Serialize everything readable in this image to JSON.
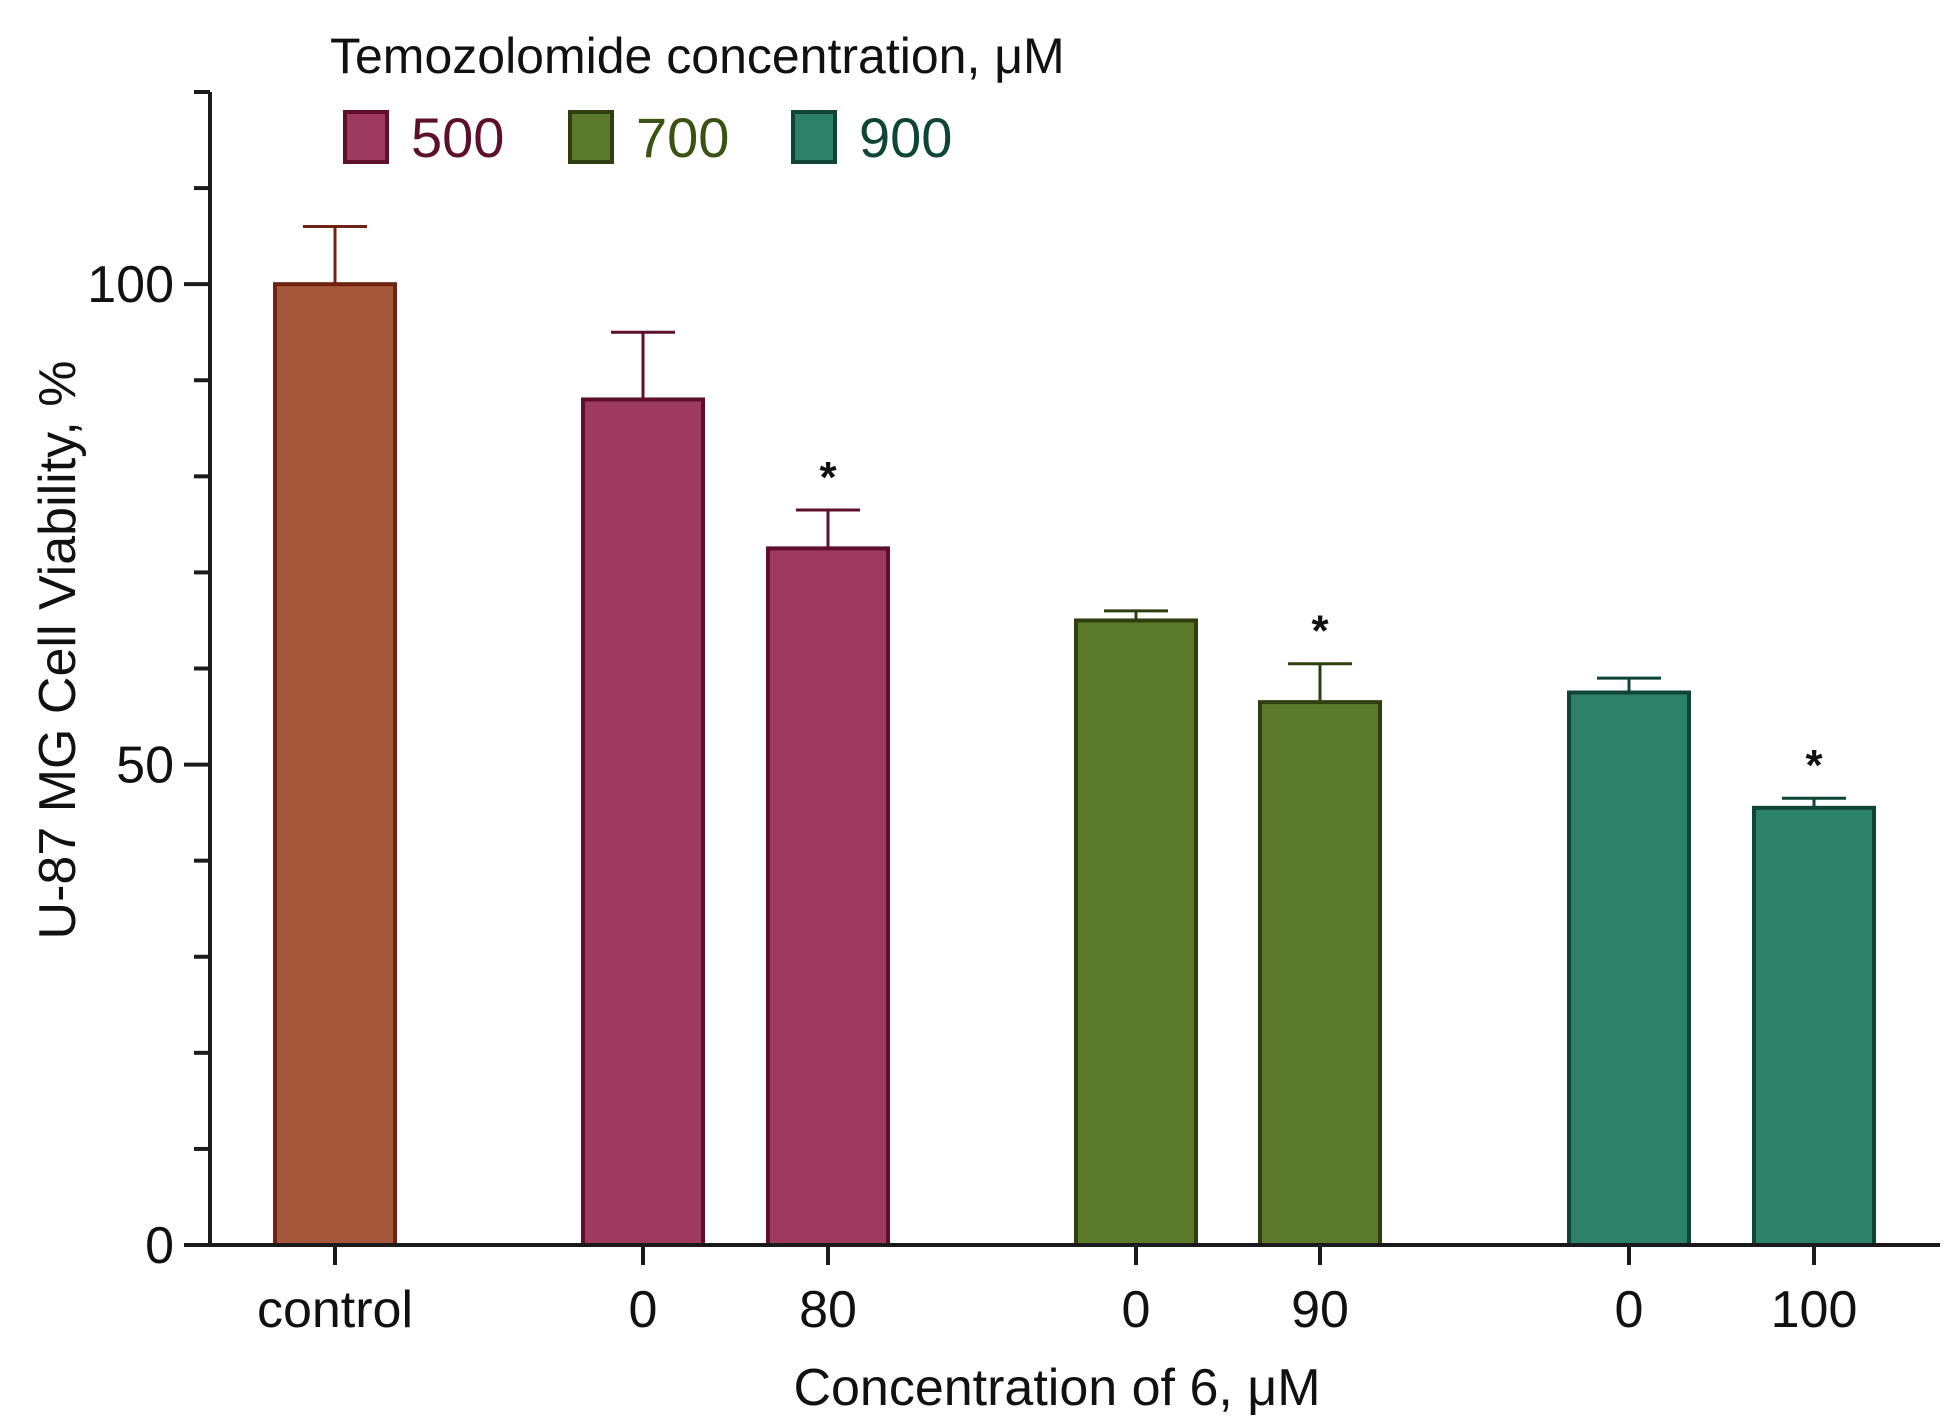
{
  "chart_data": {
    "type": "bar",
    "title": "",
    "xlabel": "Concentration of 6, μM",
    "ylabel": "U-87 MG Cell Viability, %",
    "ylim": [
      0,
      120
    ],
    "yticks_major": [
      0,
      50,
      100
    ],
    "yticks_minor": [
      10,
      20,
      30,
      40,
      60,
      70,
      80,
      90,
      110,
      120
    ],
    "grid": false,
    "legend": {
      "title": "Temozolomide concentration, μM",
      "position": "top-left",
      "entries": [
        {
          "label": "500",
          "color": "#9e3a5e",
          "edge": "#5e0f2c",
          "text_color": "#5e0f2c"
        },
        {
          "label": "700",
          "color": "#5c7a2c",
          "edge": "#2e4010",
          "text_color": "#3a5212"
        },
        {
          "label": "900",
          "color": "#2e8169",
          "edge": "#0f4536",
          "text_color": "#0f4536"
        }
      ]
    },
    "bars": [
      {
        "label": "control",
        "value": 100,
        "error": 6,
        "group": "control",
        "color": "#a5573b",
        "edge": "#6e2410",
        "significant": false
      },
      {
        "label": "0",
        "value": 88,
        "error": 7,
        "group": "500",
        "color": "#9e3a5e",
        "edge": "#5e0f2c",
        "significant": false
      },
      {
        "label": "80",
        "value": 72.5,
        "error": 4,
        "group": "500",
        "color": "#9e3a5e",
        "edge": "#5e0f2c",
        "significant": true
      },
      {
        "label": "0",
        "value": 65,
        "error": 1,
        "group": "700",
        "color": "#5c7a2c",
        "edge": "#2e4010",
        "significant": false
      },
      {
        "label": "90",
        "value": 56.5,
        "error": 4,
        "group": "700",
        "color": "#5c7a2c",
        "edge": "#2e4010",
        "significant": true
      },
      {
        "label": "0",
        "value": 57.5,
        "error": 1.5,
        "group": "900",
        "color": "#2e8169",
        "edge": "#0f4536",
        "significant": false
      },
      {
        "label": "100",
        "value": 45.5,
        "error": 1,
        "group": "900",
        "color": "#2e8169",
        "edge": "#0f4536",
        "significant": true
      }
    ],
    "significance_marker": "*"
  }
}
